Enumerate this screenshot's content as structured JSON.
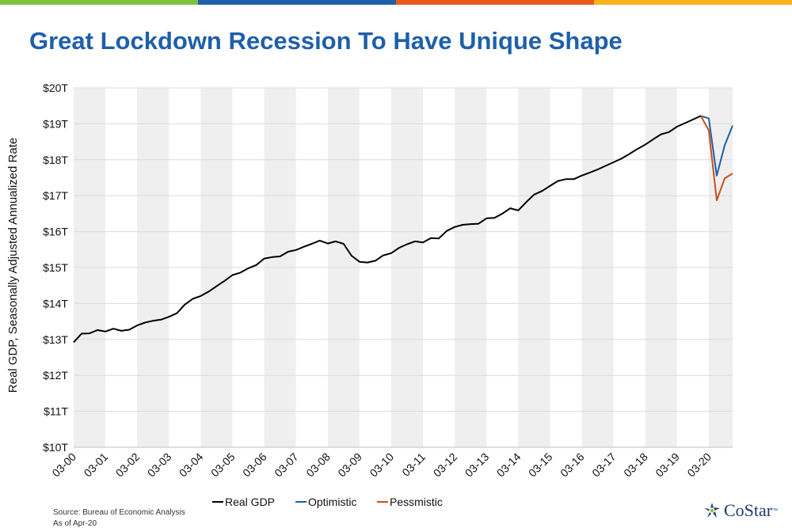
{
  "brand_colors": [
    "#7cc142",
    "#1f5fa8",
    "#e85a1b",
    "#f7b31b"
  ],
  "title": "Great Lockdown Recession To Have Unique Shape",
  "footer": {
    "source": "Source: Bureau of Economic Analysis",
    "asof": "As of Apr-20"
  },
  "logo": {
    "text": "CoStar",
    "tm": "™"
  },
  "chart_data": {
    "type": "line",
    "title": "Great Lockdown Recession To Have Unique Shape",
    "xlabel": "",
    "ylabel": "Real GDP, Seasonally Adjusted Annualized Rate",
    "ylim": [
      10,
      20
    ],
    "yticks": [
      "$20T",
      "$19T",
      "$18T",
      "$17T",
      "$16T",
      "$15T",
      "$14T",
      "$13T",
      "$12T",
      "$11T",
      "$10T"
    ],
    "xticks": [
      "03-00",
      "03-01",
      "03-02",
      "03-03",
      "03-04",
      "03-05",
      "03-06",
      "03-07",
      "03-08",
      "03-09",
      "03-10",
      "03-11",
      "03-12",
      "03-13",
      "03-14",
      "03-15",
      "03-16",
      "03-17",
      "03-18",
      "03-19",
      "03-20"
    ],
    "grid": true,
    "alternating_year_bands": true,
    "legend_position": "bottom",
    "units": "trillions of dollars",
    "series": [
      {
        "name": "Real GDP",
        "color": "#000000",
        "start": "2000-Q1",
        "frequency": "quarterly",
        "values": [
          12.92,
          13.16,
          13.17,
          13.26,
          13.22,
          13.3,
          13.24,
          13.27,
          13.39,
          13.47,
          13.52,
          13.55,
          13.63,
          13.73,
          13.97,
          14.13,
          14.21,
          14.33,
          14.48,
          14.63,
          14.79,
          14.86,
          14.98,
          15.07,
          15.25,
          15.29,
          15.31,
          15.44,
          15.49,
          15.58,
          15.66,
          15.75,
          15.67,
          15.73,
          15.66,
          15.33,
          15.16,
          15.14,
          15.19,
          15.34,
          15.4,
          15.55,
          15.65,
          15.73,
          15.7,
          15.82,
          15.81,
          16.02,
          16.13,
          16.19,
          16.21,
          16.22,
          16.37,
          16.38,
          16.5,
          16.65,
          16.59,
          16.82,
          17.03,
          17.13,
          17.27,
          17.41,
          17.46,
          17.46,
          17.56,
          17.64,
          17.73,
          17.83,
          17.93,
          18.03,
          18.16,
          18.3,
          18.42,
          18.57,
          18.71,
          18.77,
          18.92,
          19.02,
          19.12,
          19.22
        ]
      },
      {
        "name": "Optimistic",
        "color": "#1f5fa8",
        "start": "2019-Q4",
        "frequency": "quarterly",
        "values": [
          19.22,
          19.15,
          17.56,
          18.4,
          18.95
        ]
      },
      {
        "name": "Pessmistic",
        "color": "#c9501c",
        "start": "2019-Q4",
        "frequency": "quarterly",
        "values": [
          19.22,
          18.82,
          16.87,
          17.48,
          17.62
        ]
      }
    ]
  }
}
